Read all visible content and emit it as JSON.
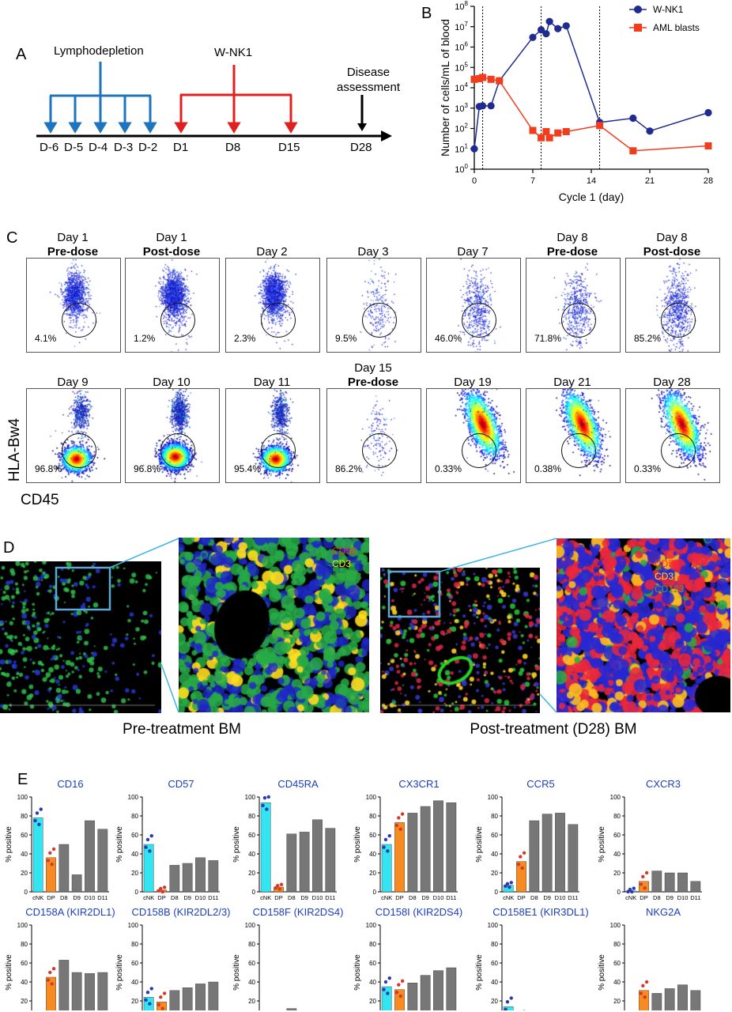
{
  "panelA": {
    "label": "A",
    "lymphodepletion": "Lymphodepletion",
    "wnk1": "W-NK1",
    "disease_assessment_line1": "Disease",
    "disease_assessment_line2": "assessment",
    "days": [
      "D-6",
      "D-5",
      "D-4",
      "D-3",
      "D-2",
      "D1",
      "D8",
      "D15",
      "D28"
    ]
  },
  "panelB": {
    "label": "B",
    "chart_data": {
      "type": "line",
      "xlabel": "Cycle 1 (day)",
      "ylabel": "Number of cells/mL of blood",
      "x_ticks": [
        0,
        7,
        14,
        21,
        28
      ],
      "y_scale": "log",
      "y_ticks": [
        "10^0",
        "10^1",
        "10^2",
        "10^3",
        "10^4",
        "10^5",
        "10^6",
        "10^7",
        "10^8"
      ],
      "xlim": [
        0,
        28
      ],
      "ylim": [
        1,
        100000000
      ],
      "vlines": [
        1,
        8,
        15
      ],
      "legend_position": "top-right",
      "series": [
        {
          "name": "W-NK1",
          "color": "#1f2b8f",
          "marker": "circle",
          "x": [
            0,
            0.6,
            1,
            2,
            3,
            7,
            8,
            8.6,
            9,
            10,
            11,
            15,
            19,
            21,
            28
          ],
          "y": [
            10,
            1200,
            1300,
            1300,
            22000,
            3000000,
            7000000,
            4500000,
            18000000,
            8000000,
            11000000,
            200,
            320,
            75,
            600
          ]
        },
        {
          "name": "AML blasts",
          "color": "#f23c1e",
          "marker": "square",
          "x": [
            0,
            0.6,
            1,
            2,
            3,
            7,
            8,
            8.6,
            9,
            10,
            11,
            15,
            19,
            28
          ],
          "y": [
            26000,
            28000,
            32000,
            26000,
            22000,
            80,
            35,
            70,
            35,
            60,
            70,
            140,
            8,
            14
          ]
        }
      ]
    }
  },
  "panelC": {
    "label": "C",
    "ylabel": "HLA-Bw4",
    "xlabel": "CD45",
    "row1": [
      {
        "title": "Day 1",
        "bold": "Pre-dose",
        "pct": "4.1%",
        "density": 0.55,
        "rainbow": false
      },
      {
        "title": "Day 1",
        "bold": "Post-dose",
        "pct": "1.2%",
        "density": 0.8,
        "rainbow": false
      },
      {
        "title": "Day 2",
        "bold": "",
        "pct": "2.3%",
        "density": 0.7,
        "rainbow": false
      },
      {
        "title": "Day 3",
        "bold": "",
        "pct": "9.5%",
        "density": 0.08,
        "rainbow": false
      },
      {
        "title": "Day 7",
        "bold": "",
        "pct": "46.0%",
        "density": 0.22,
        "rainbow": false
      },
      {
        "title": "Day 8",
        "bold": "Pre-dose",
        "pct": "71.8%",
        "density": 0.22,
        "rainbow": false
      },
      {
        "title": "Day 8",
        "bold": "Post-dose",
        "pct": "85.2%",
        "density": 0.3,
        "rainbow": false
      }
    ],
    "row2": [
      {
        "title": "Day 9",
        "bold": "",
        "pct": "96.8%",
        "density": 0.6,
        "rainbow": true
      },
      {
        "title": "Day 10",
        "bold": "",
        "pct": "96.8%",
        "density": 0.9,
        "rainbow": true
      },
      {
        "title": "Day 11",
        "bold": "",
        "pct": "95.4%",
        "density": 0.7,
        "rainbow": true
      },
      {
        "title": "Day 15",
        "bold": "Pre-dose",
        "pct": "86.2%",
        "density": 0.05,
        "rainbow": false
      },
      {
        "title": "Day 19",
        "bold": "",
        "pct": "0.33%",
        "density": 0.9,
        "rainbow": true
      },
      {
        "title": "Day 21",
        "bold": "",
        "pct": "0.38%",
        "density": 0.9,
        "rainbow": true
      },
      {
        "title": "Day 28",
        "bold": "",
        "pct": "0.33%",
        "density": 0.8,
        "rainbow": true
      }
    ]
  },
  "panelD": {
    "label": "D",
    "markers": [
      {
        "text": "CD56",
        "color": "#ff2a2a"
      },
      {
        "text": "CD3",
        "color": "#ffe600"
      },
      {
        "text": "CD123",
        "color": "#3aa63a"
      }
    ],
    "pre_caption": "Pre-treatment BM",
    "post_caption": "Post-treatment (D28) BM"
  },
  "panelE": {
    "label": "E",
    "ylabel": "% positive",
    "categories": [
      "cNK",
      "DP",
      "D8",
      "D9",
      "D10",
      "D11"
    ],
    "y_ticks": [
      0,
      20,
      40,
      60,
      80,
      100
    ],
    "colors": [
      "#33e5f0",
      "#f78a20",
      "#777777",
      "#777777",
      "#777777",
      "#777777"
    ],
    "chart_data": [
      {
        "type": "bar",
        "title": "CD16",
        "ylim": [
          0,
          100
        ],
        "values": [
          78,
          36,
          50,
          18,
          75,
          66
        ]
      },
      {
        "type": "bar",
        "title": "CD57",
        "ylim": [
          0,
          100
        ],
        "values": [
          50,
          2,
          28,
          30,
          36,
          33
        ]
      },
      {
        "type": "bar",
        "title": "CD45RA",
        "ylim": [
          0,
          100
        ],
        "values": [
          94,
          5,
          61,
          63,
          76,
          67
        ]
      },
      {
        "type": "bar",
        "title": "CX3CR1",
        "ylim": [
          0,
          100
        ],
        "values": [
          50,
          73,
          83,
          90,
          96,
          94
        ]
      },
      {
        "type": "bar",
        "title": "CCR5",
        "ylim": [
          0,
          100
        ],
        "values": [
          7,
          32,
          75,
          82,
          83,
          71
        ]
      },
      {
        "type": "bar",
        "title": "CXCR3",
        "ylim": [
          0,
          100
        ],
        "values": [
          1,
          11,
          22,
          20,
          20,
          11
        ]
      },
      {
        "type": "bar",
        "title": "CD158A (KIR2DL1)",
        "ylim": [
          0,
          100
        ],
        "values": [
          1,
          45,
          63,
          50,
          49,
          50
        ]
      },
      {
        "type": "bar",
        "title": "CD158B (KIR2DL2/3)",
        "ylim": [
          0,
          100
        ],
        "values": [
          24,
          19,
          31,
          34,
          38,
          40
        ]
      },
      {
        "type": "bar",
        "title": "CD158F (KIR2DS4)",
        "ylim": [
          0,
          100
        ],
        "values": [
          1,
          2,
          12,
          7,
          7,
          7
        ]
      },
      {
        "type": "bar",
        "title": "CD158I (KIR2DS4)",
        "ylim": [
          0,
          100
        ],
        "values": [
          35,
          32,
          39,
          47,
          52,
          55
        ]
      },
      {
        "type": "bar",
        "title": "CD158E1 (KIR3DL1)",
        "ylim": [
          0,
          100
        ],
        "values": [
          14,
          6,
          9,
          6,
          7,
          7
        ]
      },
      {
        "type": "bar",
        "title": "NKG2A",
        "ylim": [
          0,
          100
        ],
        "values": [
          1,
          31,
          28,
          33,
          37,
          31
        ]
      }
    ]
  }
}
